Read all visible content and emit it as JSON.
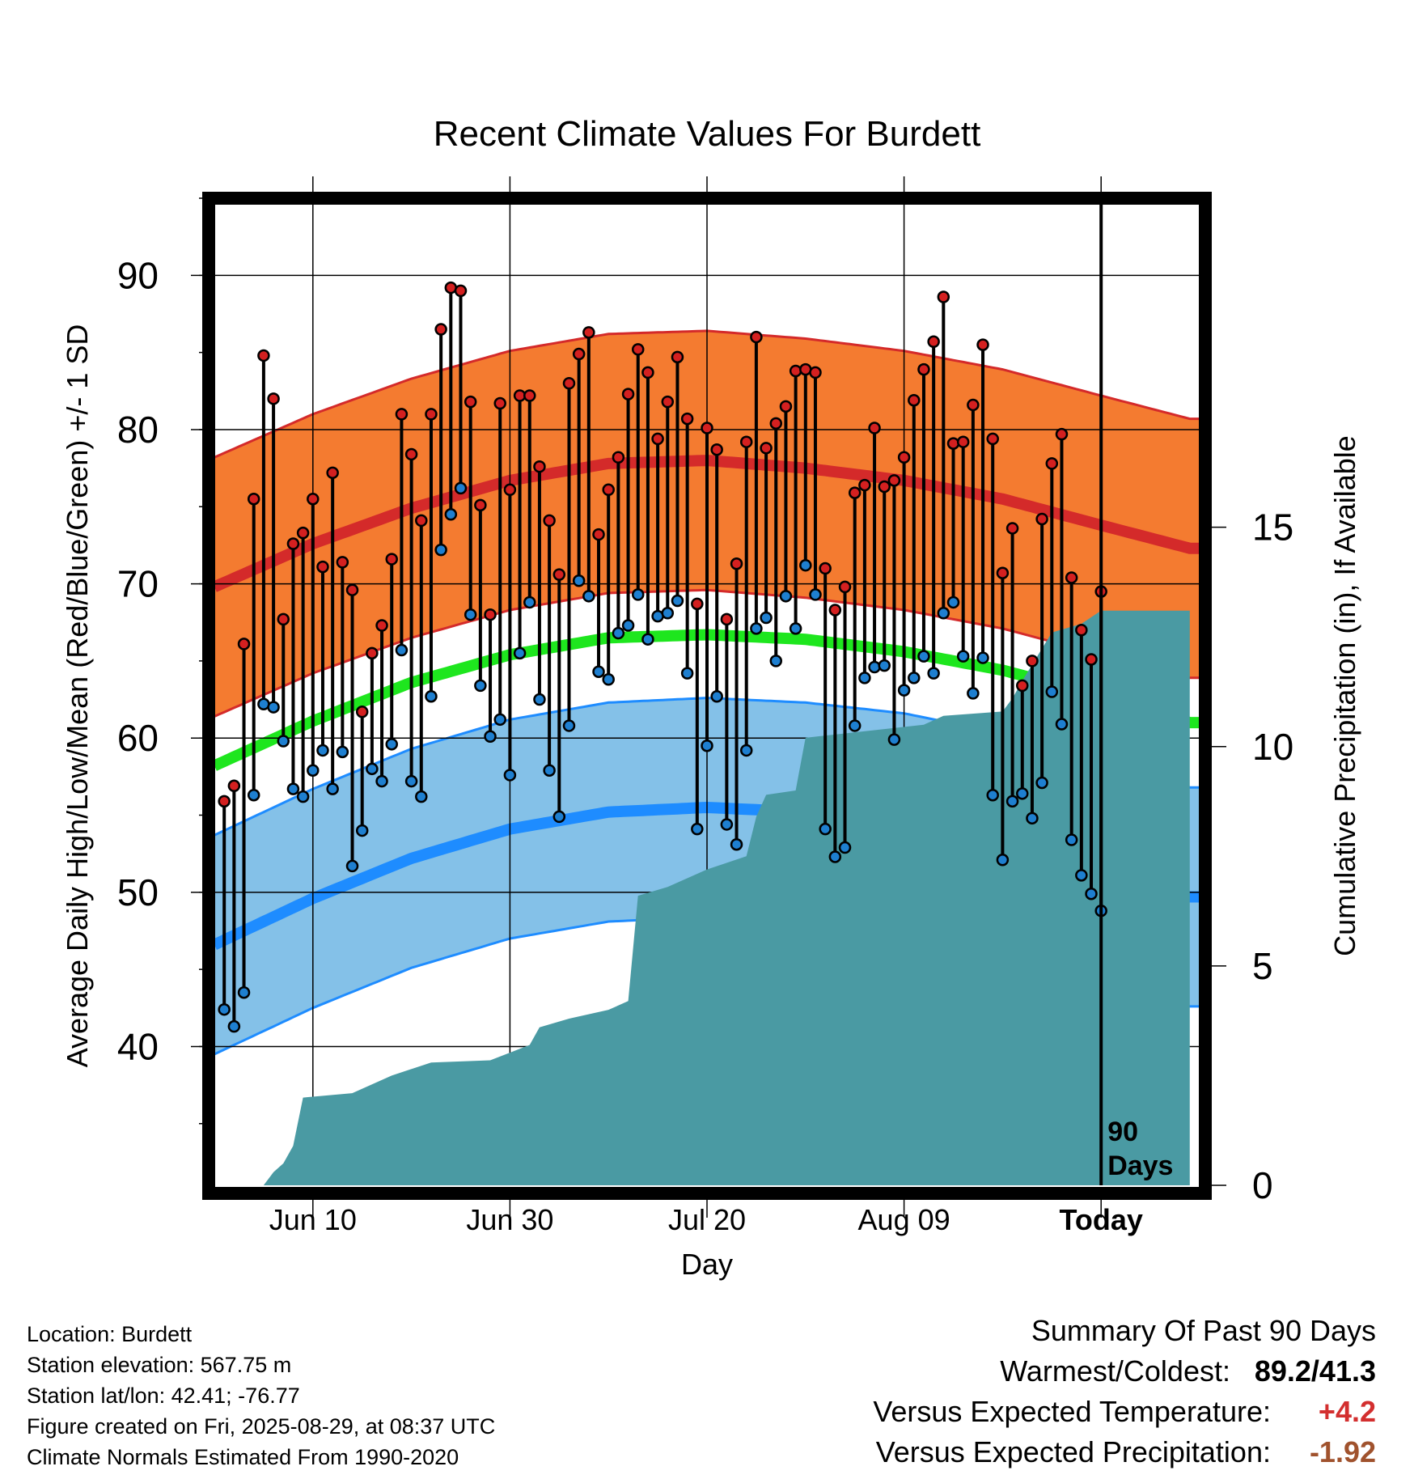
{
  "chart_data": {
    "type": "line",
    "title": "Recent Climate Values For Burdett",
    "xlabel": "Day",
    "ylabel_left": "Average Daily High/Low/Mean (Red/Blue/Green) +/- 1 SD",
    "ylabel_right": "Cumulative Precipitation (in), If Available",
    "y_left_range": [
      31,
      95
    ],
    "y_right_range": [
      0,
      22.5
    ],
    "y_left_ticks": [
      "40",
      "50",
      "60",
      "70",
      "80",
      "90"
    ],
    "y_right_ticks": [
      "0",
      "5",
      "10",
      "15"
    ],
    "x_range": [
      -90,
      10
    ],
    "x_ticks": [
      {
        "day": -80,
        "label": "Jun 10"
      },
      {
        "day": -60,
        "label": "Jun 30"
      },
      {
        "day": -40,
        "label": "Jul 20"
      },
      {
        "day": -20,
        "label": "Aug 09"
      },
      {
        "day": 0,
        "label": "Today"
      }
    ],
    "today_marker_label": [
      "90",
      "Days"
    ],
    "colors": {
      "high_band": "#f47b30",
      "high_line": "#d42a2a",
      "mean_line": "#1ee61e",
      "low_band": "#84c1e8",
      "low_line": "#1e8cff",
      "precip": "#4a9aa3",
      "high_dot": "#d42020",
      "low_dot": "#1e7fd0"
    },
    "normals": {
      "days": [
        -90,
        -80,
        -70,
        -60,
        -50,
        -40,
        -30,
        -20,
        -10,
        0,
        9
      ],
      "high": [
        69.8,
        72.6,
        74.9,
        76.7,
        77.8,
        78.0,
        77.5,
        76.7,
        75.5,
        73.8,
        72.3
      ],
      "low": [
        46.6,
        49.6,
        52.2,
        54.1,
        55.2,
        55.5,
        55.2,
        54.5,
        53.2,
        51.5,
        49.7
      ],
      "mean": [
        58.2,
        61.1,
        63.6,
        65.4,
        66.5,
        66.7,
        66.4,
        65.6,
        64.4,
        62.7,
        61.0
      ],
      "high_sd": 8.4,
      "low_sd": 7.1
    },
    "daily": [
      {
        "d": -89,
        "high": 55.9,
        "low": 42.4
      },
      {
        "d": -88,
        "high": 56.9,
        "low": 41.3
      },
      {
        "d": -87,
        "high": 66.1,
        "low": 43.5
      },
      {
        "d": -86,
        "high": 75.5,
        "low": 56.3
      },
      {
        "d": -85,
        "high": 84.8,
        "low": 62.2
      },
      {
        "d": -84,
        "high": 82.0,
        "low": 62.0
      },
      {
        "d": -83,
        "high": 67.7,
        "low": 59.8
      },
      {
        "d": -82,
        "high": 72.6,
        "low": 56.7
      },
      {
        "d": -81,
        "high": 73.3,
        "low": 56.2
      },
      {
        "d": -80,
        "high": 75.5,
        "low": 57.9
      },
      {
        "d": -79,
        "high": 71.1,
        "low": 59.2
      },
      {
        "d": -78,
        "high": 77.2,
        "low": 56.7
      },
      {
        "d": -77,
        "high": 71.4,
        "low": 59.1
      },
      {
        "d": -76,
        "high": 69.6,
        "low": 51.7
      },
      {
        "d": -75,
        "high": 61.7,
        "low": 54.0
      },
      {
        "d": -74,
        "high": 65.5,
        "low": 58.0
      },
      {
        "d": -73,
        "high": 67.3,
        "low": 57.2
      },
      {
        "d": -72,
        "high": 71.6,
        "low": 59.6
      },
      {
        "d": -71,
        "high": 81.0,
        "low": 65.7
      },
      {
        "d": -70,
        "high": 78.4,
        "low": 57.2
      },
      {
        "d": -69,
        "high": 74.1,
        "low": 56.2
      },
      {
        "d": -68,
        "high": 81.0,
        "low": 62.7
      },
      {
        "d": -67,
        "high": 86.5,
        "low": 72.2
      },
      {
        "d": -66,
        "high": 89.2,
        "low": 74.5
      },
      {
        "d": -65,
        "high": 89.0,
        "low": 76.2
      },
      {
        "d": -64,
        "high": 81.8,
        "low": 68.0
      },
      {
        "d": -63,
        "high": 75.1,
        "low": 63.4
      },
      {
        "d": -62,
        "high": 68.0,
        "low": 60.1
      },
      {
        "d": -61,
        "high": 81.7,
        "low": 61.2
      },
      {
        "d": -60,
        "high": 76.1,
        "low": 57.6
      },
      {
        "d": -59,
        "high": 82.2,
        "low": 65.5
      },
      {
        "d": -58,
        "high": 82.2,
        "low": 68.8
      },
      {
        "d": -57,
        "high": 77.6,
        "low": 62.5
      },
      {
        "d": -56,
        "high": 74.1,
        "low": 57.9
      },
      {
        "d": -55,
        "high": 70.6,
        "low": 54.9
      },
      {
        "d": -54,
        "high": 83.0,
        "low": 60.8
      },
      {
        "d": -53,
        "high": 84.9,
        "low": 70.2
      },
      {
        "d": -52,
        "high": 86.3,
        "low": 69.2
      },
      {
        "d": -51,
        "high": 73.2,
        "low": 64.3
      },
      {
        "d": -50,
        "high": 76.1,
        "low": 63.8
      },
      {
        "d": -49,
        "high": 78.2,
        "low": 66.8
      },
      {
        "d": -48,
        "high": 82.3,
        "low": 67.3
      },
      {
        "d": -47,
        "high": 85.2,
        "low": 69.3
      },
      {
        "d": -46,
        "high": 83.7,
        "low": 66.4
      },
      {
        "d": -45,
        "high": 79.4,
        "low": 67.9
      },
      {
        "d": -44,
        "high": 81.8,
        "low": 68.1
      },
      {
        "d": -43,
        "high": 84.7,
        "low": 68.9
      },
      {
        "d": -42,
        "high": 80.7,
        "low": 64.2
      },
      {
        "d": -41,
        "high": 68.7,
        "low": 54.1
      },
      {
        "d": -40,
        "high": 80.1,
        "low": 59.5
      },
      {
        "d": -39,
        "high": 78.7,
        "low": 62.7
      },
      {
        "d": -38,
        "high": 67.7,
        "low": 54.4
      },
      {
        "d": -37,
        "high": 71.3,
        "low": 53.1
      },
      {
        "d": -36,
        "high": 79.2,
        "low": 59.2
      },
      {
        "d": -35,
        "high": 86.0,
        "low": 67.1
      },
      {
        "d": -34,
        "high": 78.8,
        "low": 67.8
      },
      {
        "d": -33,
        "high": 80.4,
        "low": 65.0
      },
      {
        "d": -32,
        "high": 81.5,
        "low": 69.2
      },
      {
        "d": -31,
        "high": 83.8,
        "low": 67.1
      },
      {
        "d": -30,
        "high": 83.9,
        "low": 71.2
      },
      {
        "d": -29,
        "high": 83.7,
        "low": 69.3
      },
      {
        "d": -28,
        "high": 71.0,
        "low": 54.1
      },
      {
        "d": -27,
        "high": 68.3,
        "low": 52.3
      },
      {
        "d": -26,
        "high": 69.8,
        "low": 52.9
      },
      {
        "d": -25,
        "high": 75.9,
        "low": 60.8
      },
      {
        "d": -24,
        "high": 76.4,
        "low": 63.9
      },
      {
        "d": -23,
        "high": 80.1,
        "low": 64.6
      },
      {
        "d": -22,
        "high": 76.3,
        "low": 64.7
      },
      {
        "d": -21,
        "high": 76.7,
        "low": 59.9
      },
      {
        "d": -20,
        "high": 78.2,
        "low": 63.1
      },
      {
        "d": -19,
        "high": 81.9,
        "low": 63.9
      },
      {
        "d": -18,
        "high": 83.9,
        "low": 65.3
      },
      {
        "d": -17,
        "high": 85.7,
        "low": 64.2
      },
      {
        "d": -16,
        "high": 88.6,
        "low": 68.1
      },
      {
        "d": -15,
        "high": 79.1,
        "low": 68.8
      },
      {
        "d": -14,
        "high": 79.2,
        "low": 65.3
      },
      {
        "d": -13,
        "high": 81.6,
        "low": 62.9
      },
      {
        "d": -12,
        "high": 85.5,
        "low": 65.2
      },
      {
        "d": -11,
        "high": 79.4,
        "low": 56.3
      },
      {
        "d": -10,
        "high": 70.7,
        "low": 52.1
      },
      {
        "d": -9,
        "high": 73.6,
        "low": 55.9
      },
      {
        "d": -8,
        "high": 63.4,
        "low": 56.4
      },
      {
        "d": -7,
        "high": 65.0,
        "low": 54.8
      },
      {
        "d": -6,
        "high": 74.2,
        "low": 57.1
      },
      {
        "d": -5,
        "high": 77.8,
        "low": 63.0
      },
      {
        "d": -4,
        "high": 79.7,
        "low": 60.9
      },
      {
        "d": -3,
        "high": 70.4,
        "low": 53.4
      },
      {
        "d": -2,
        "high": 67.0,
        "low": 51.1
      },
      {
        "d": -1,
        "high": 65.1,
        "low": 49.9
      },
      {
        "d": 0,
        "high": 69.5,
        "low": 48.8
      }
    ],
    "precip_cumulative": [
      {
        "d": -85,
        "v": 0.0
      },
      {
        "d": -84,
        "v": 0.3
      },
      {
        "d": -83,
        "v": 0.5
      },
      {
        "d": -82,
        "v": 0.9
      },
      {
        "d": -81,
        "v": 2.0
      },
      {
        "d": -76,
        "v": 2.1
      },
      {
        "d": -72,
        "v": 2.5
      },
      {
        "d": -68,
        "v": 2.8
      },
      {
        "d": -62,
        "v": 2.85
      },
      {
        "d": -58,
        "v": 3.2
      },
      {
        "d": -57,
        "v": 3.6
      },
      {
        "d": -54,
        "v": 3.8
      },
      {
        "d": -50,
        "v": 4.0
      },
      {
        "d": -48,
        "v": 4.2
      },
      {
        "d": -47,
        "v": 6.6
      },
      {
        "d": -44,
        "v": 6.8
      },
      {
        "d": -40,
        "v": 7.2
      },
      {
        "d": -36,
        "v": 7.5
      },
      {
        "d": -35,
        "v": 8.4
      },
      {
        "d": -34,
        "v": 8.9
      },
      {
        "d": -31,
        "v": 9.0
      },
      {
        "d": -30,
        "v": 10.2
      },
      {
        "d": -26,
        "v": 10.3
      },
      {
        "d": -18,
        "v": 10.5
      },
      {
        "d": -16,
        "v": 10.7
      },
      {
        "d": -10,
        "v": 10.8
      },
      {
        "d": -9,
        "v": 11.1
      },
      {
        "d": -8,
        "v": 11.5
      },
      {
        "d": -5,
        "v": 12.6
      },
      {
        "d": -2,
        "v": 12.8
      },
      {
        "d": 0,
        "v": 13.1
      },
      {
        "d": 9,
        "v": 13.1
      }
    ]
  },
  "footer": {
    "location": "Location: Burdett",
    "elevation": "Station elevation: 567.75 m",
    "latlon": "Station lat/lon: 42.41; -76.77",
    "created": "Figure created on Fri, 2025-08-29, at 08:37 UTC",
    "normals": "Climate Normals Estimated From 1990-2020"
  },
  "summary": {
    "title": "Summary Of Past 90 Days",
    "warmest_coldest_label": "Warmest/Coldest:",
    "warmest_coldest_value": "89.2/41.3",
    "temp_label": "Versus Expected Temperature:",
    "temp_value": "+4.2",
    "temp_color": "#d32f2f",
    "precip_label": "Versus Expected Precipitation:",
    "precip_value": "-1.92",
    "precip_color": "#a0522d"
  }
}
